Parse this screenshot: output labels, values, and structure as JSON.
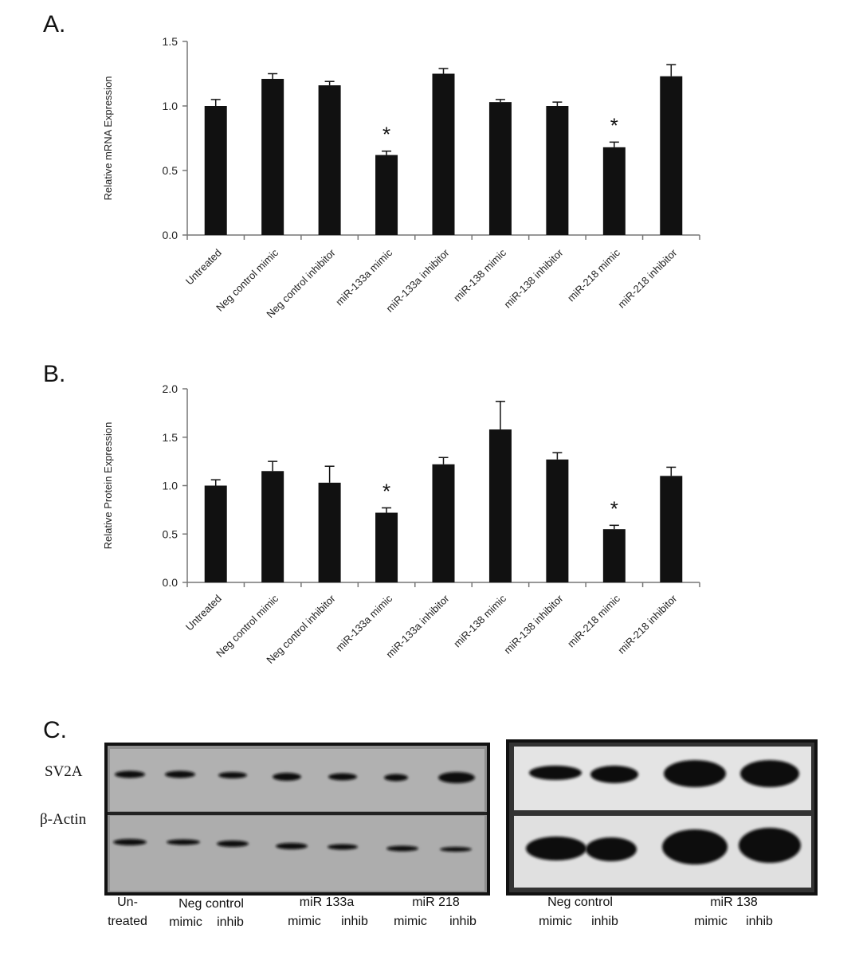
{
  "panels": {
    "a_letter": "A.",
    "b_letter": "B.",
    "c_letter": "C."
  },
  "chart_data": [
    {
      "type": "bar",
      "ylabel": "Relative mRNA Expression",
      "xlabel": "",
      "ylim": [
        0,
        1.5
      ],
      "yticks": [
        "0.0",
        "0.5",
        "1.0",
        "1.5"
      ],
      "categories": [
        "Untreated",
        "Neg control mimic",
        "Neg control inhibitor",
        "miR-133a mimic",
        "miR-133a inhibitor",
        "miR-138 mimic",
        "miR-138 inhibitor",
        "miR-218 mimic",
        "miR-218 inhibitor"
      ],
      "values": [
        1.0,
        1.21,
        1.16,
        0.62,
        1.25,
        1.03,
        1.0,
        0.68,
        1.23
      ],
      "errors": [
        0.05,
        0.04,
        0.03,
        0.03,
        0.04,
        0.02,
        0.03,
        0.04,
        0.09
      ],
      "significance": [
        "",
        "",
        "",
        "*",
        "",
        "",
        "",
        "*",
        ""
      ],
      "bar_color": "#111111",
      "grid": false
    },
    {
      "type": "bar",
      "ylabel": "Relative Protein Expression",
      "xlabel": "",
      "ylim": [
        0,
        2.0
      ],
      "yticks": [
        "0.0",
        "0.5",
        "1.0",
        "1.5",
        "2.0"
      ],
      "categories": [
        "Untreated",
        "Neg control mimic",
        "Neg control inhibitor",
        "miR-133a mimic",
        "miR-133a inhibitor",
        "miR-138 mimic",
        "miR-138 inhibitor",
        "miR-218 mimic",
        "miR-218 inhibitor"
      ],
      "values": [
        1.0,
        1.15,
        1.03,
        0.72,
        1.22,
        1.58,
        1.27,
        0.55,
        1.1
      ],
      "errors": [
        0.06,
        0.1,
        0.17,
        0.05,
        0.07,
        0.29,
        0.07,
        0.04,
        0.09
      ],
      "significance": [
        "",
        "",
        "",
        "*",
        "",
        "",
        "",
        "*",
        ""
      ],
      "bar_color": "#111111",
      "grid": false
    }
  ],
  "blot": {
    "row_labels": {
      "sv2a": "SV2A",
      "actin": "β-Actin"
    },
    "left_captions": {
      "untreated_top": "Un-",
      "untreated_bottom": "treated",
      "negctrl_top": "Neg control",
      "negctrl_mimic": "mimic",
      "negctrl_inhib": "inhib",
      "mir133a_top": "miR 133a",
      "mir133a_mimic": "mimic",
      "mir133a_inhib": "inhib",
      "mir218_top": "miR 218",
      "mir218_mimic": "mimic",
      "mir218_inhib": "inhib"
    },
    "right_captions": {
      "negctrl_top": "Neg control",
      "negctrl_mimic": "mimic",
      "negctrl_inhib": "inhib",
      "mir138_top": "miR 138",
      "mir138_mimic": "mimic",
      "mir138_inhib": "inhib"
    }
  }
}
